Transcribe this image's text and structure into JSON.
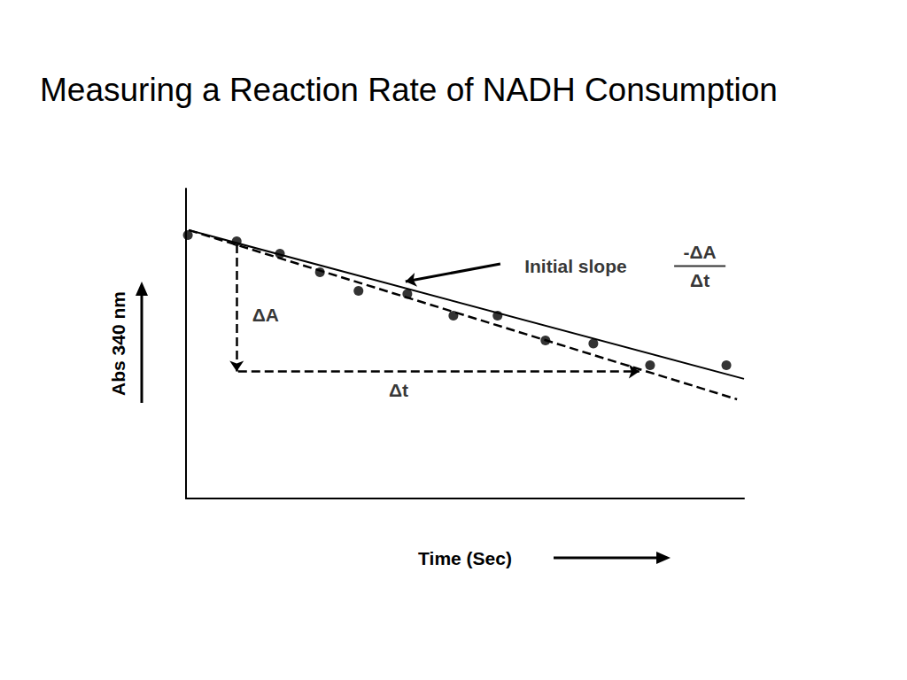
{
  "chart_data": {
    "type": "scatter",
    "title": "Measuring a Reaction Rate of NADH Consumption",
    "x_label": "Time (Sec)",
    "y_label": "Abs 340 nm",
    "xlim": [
      0,
      12
    ],
    "ylim": [
      0,
      1
    ],
    "tick_labels": false,
    "grid": false,
    "series": [
      {
        "type": "scatter",
        "marker": "circle",
        "color": "#000000",
        "x": [
          0.04,
          1.09,
          2.02,
          2.88,
          3.71,
          4.76,
          5.75,
          6.7,
          7.73,
          8.76,
          9.98,
          11.62
        ],
        "values": [
          0.85,
          0.83,
          0.79,
          0.73,
          0.67,
          0.66,
          0.59,
          0.59,
          0.51,
          0.5,
          0.43,
          0.43
        ]
      },
      {
        "type": "line",
        "line_style": "solid",
        "color": "#000000",
        "x": [
          0.06,
          12
        ],
        "values": [
          0.866,
          0.386
        ]
      },
      {
        "type": "line",
        "line_style": "dashed",
        "color": "#000000",
        "x": [
          0.06,
          11.85
        ],
        "values": [
          0.866,
          0.32
        ]
      }
    ],
    "annotations": [
      {
        "text": "ΔA",
        "x": 1.71,
        "y": 0.594
      },
      {
        "text": "Δt",
        "x": 4.57,
        "y": 0.35
      },
      {
        "text": "Initial slope",
        "x": 8.38,
        "y": 0.749
      },
      {
        "numerator": "-ΔA",
        "denominator": "Δt",
        "x": 11.05,
        "y": 0.75
      }
    ],
    "arrows": [
      {
        "from": [
          1.09,
          0.82
        ],
        "to": [
          1.09,
          0.41
        ],
        "line_style": "dashed"
      },
      {
        "from": [
          1.12,
          0.41
        ],
        "to": [
          9.75,
          0.41
        ],
        "line_style": "dashed"
      },
      {
        "from": [
          6.76,
          0.757
        ],
        "to": [
          4.72,
          0.7
        ],
        "line_style": "solid"
      }
    ]
  }
}
